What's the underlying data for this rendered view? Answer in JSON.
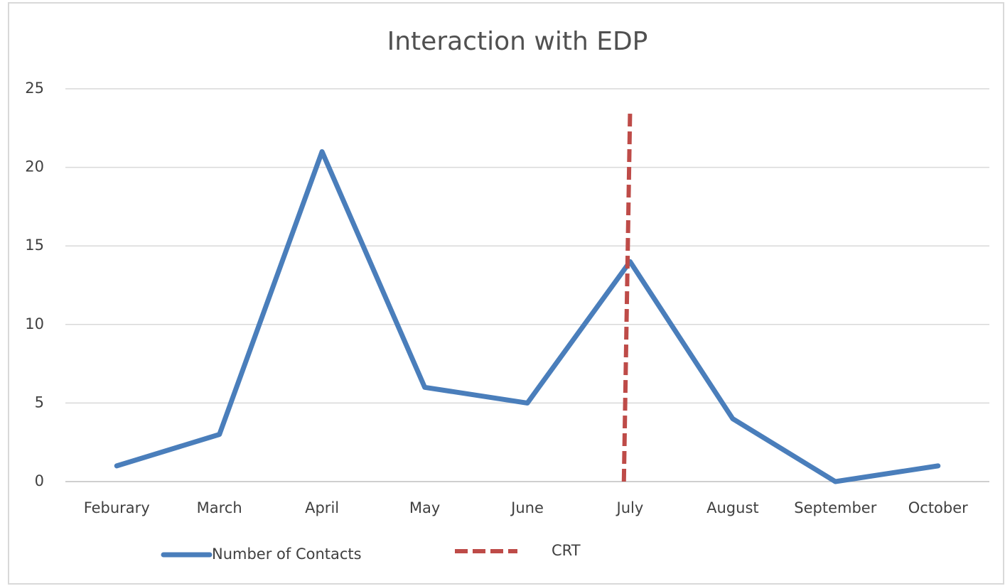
{
  "chart_data": {
    "type": "line",
    "title": "Interaction with EDP",
    "categories": [
      "Feburary",
      "March",
      "April",
      "May",
      "June",
      "July",
      "August",
      "September",
      "October"
    ],
    "series": [
      {
        "name": "Number of Contacts",
        "color": "#4a7ebb",
        "values": [
          1,
          3,
          21,
          6,
          5,
          14,
          4,
          0,
          1
        ]
      },
      {
        "name": "CRT",
        "color": "#be4b48",
        "dashed": true,
        "x": [
          4.94,
          5.0
        ],
        "values": [
          0,
          23.5
        ]
      }
    ],
    "ylim": [
      0,
      25
    ],
    "yticks": [
      0,
      5,
      10,
      15,
      20,
      25
    ],
    "grid": true,
    "legend": "bottom"
  }
}
